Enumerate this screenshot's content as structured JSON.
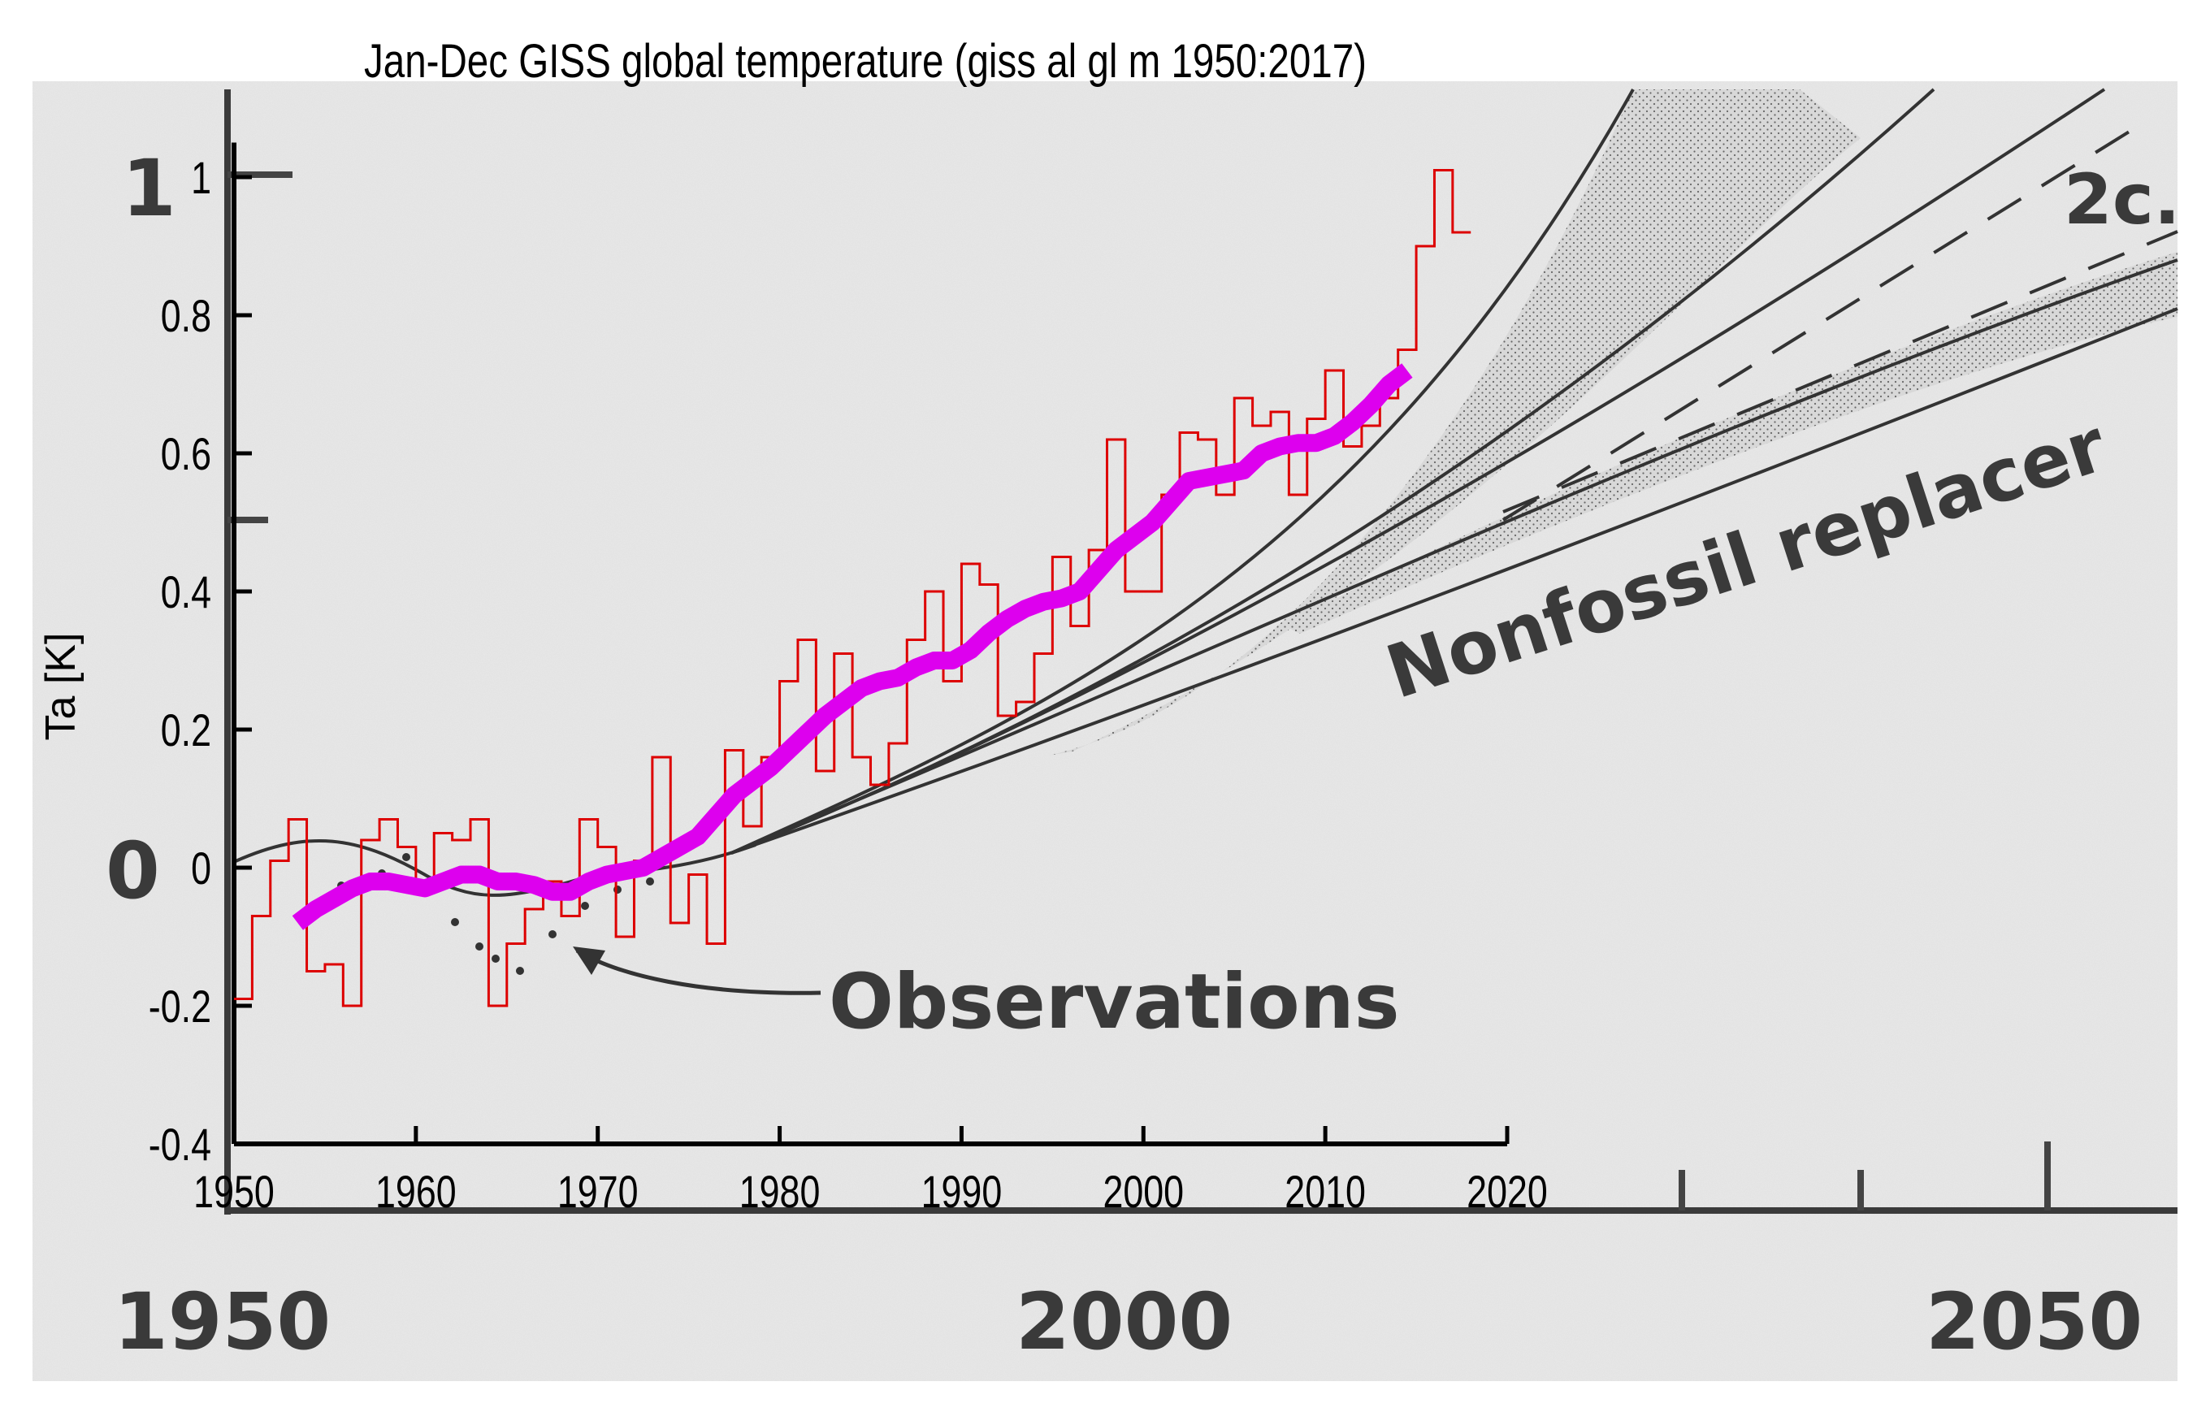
{
  "chart_data": {
    "type": "line",
    "title": "Jan-Dec  GISS global temperature (giss al gl m 1950:2017)",
    "ylabel": "Ta [K]",
    "xlabel": "",
    "xlim": [
      1950,
      2020
    ],
    "ylim": [
      -0.4,
      1.05
    ],
    "x_ticks": [
      1950,
      1960,
      1970,
      1980,
      1990,
      2000,
      2010,
      2020
    ],
    "y_ticks": [
      -0.4,
      -0.2,
      0,
      0.2,
      0.4,
      0.6,
      0.8,
      1
    ],
    "y_tick_labels": [
      "-0.4",
      "-0.2",
      "0",
      "0.2",
      "0.4",
      "0.6",
      "0.8",
      "1"
    ],
    "series": [
      {
        "color": "#dd0000",
        "style": "step",
        "x": [
          1950,
          1951,
          1952,
          1953,
          1954,
          1955,
          1956,
          1957,
          1958,
          1959,
          1960,
          1961,
          1962,
          1963,
          1964,
          1965,
          1966,
          1967,
          1968,
          1969,
          1970,
          1971,
          1972,
          1973,
          1974,
          1975,
          1976,
          1977,
          1978,
          1979,
          1980,
          1981,
          1982,
          1983,
          1984,
          1985,
          1986,
          1987,
          1988,
          1989,
          1990,
          1991,
          1992,
          1993,
          1994,
          1995,
          1996,
          1997,
          1998,
          1999,
          2000,
          2001,
          2002,
          2003,
          2004,
          2005,
          2006,
          2007,
          2008,
          2009,
          2010,
          2011,
          2012,
          2013,
          2014,
          2015,
          2016,
          2017
        ],
        "y": [
          -0.19,
          -0.07,
          0.01,
          0.07,
          -0.15,
          -0.14,
          -0.2,
          0.04,
          0.07,
          0.03,
          -0.02,
          0.05,
          0.04,
          0.07,
          -0.2,
          -0.11,
          -0.06,
          -0.02,
          -0.07,
          0.07,
          0.03,
          -0.1,
          0.01,
          0.16,
          -0.08,
          -0.01,
          -0.11,
          0.17,
          0.06,
          0.16,
          0.27,
          0.33,
          0.14,
          0.31,
          0.16,
          0.12,
          0.18,
          0.33,
          0.4,
          0.27,
          0.44,
          0.41,
          0.22,
          0.24,
          0.31,
          0.45,
          0.35,
          0.46,
          0.62,
          0.4,
          0.4,
          0.54,
          0.63,
          0.62,
          0.54,
          0.68,
          0.64,
          0.66,
          0.54,
          0.65,
          0.72,
          0.61,
          0.64,
          0.68,
          0.75,
          0.9,
          1.01,
          0.92
        ]
      },
      {
        "color": "#dd00ee",
        "style": "smoothed",
        "x": [
          1953,
          1954,
          1955,
          1956,
          1957,
          1958,
          1959,
          1960,
          1961,
          1962,
          1963,
          1964,
          1965,
          1966,
          1967,
          1968,
          1969,
          1970,
          1971,
          1972,
          1973,
          1974,
          1975,
          1976,
          1977,
          1978,
          1979,
          1980,
          1981,
          1982,
          1983,
          1984,
          1985,
          1986,
          1987,
          1988,
          1989,
          1990,
          1991,
          1992,
          1993,
          1994,
          1995,
          1996,
          1997,
          1998,
          1999,
          2000,
          2001,
          2002,
          2003,
          2004,
          2005,
          2006,
          2007,
          2008,
          2009,
          2010,
          2011,
          2012,
          2013,
          2014
        ],
        "y": [
          -0.08,
          -0.06,
          -0.045,
          -0.03,
          -0.02,
          -0.02,
          -0.025,
          -0.03,
          -0.02,
          -0.01,
          -0.01,
          -0.02,
          -0.02,
          -0.025,
          -0.035,
          -0.035,
          -0.02,
          -0.01,
          -0.005,
          0.0,
          0.015,
          0.03,
          0.045,
          0.075,
          0.105,
          0.125,
          0.145,
          0.17,
          0.195,
          0.22,
          0.24,
          0.26,
          0.27,
          0.275,
          0.29,
          0.3,
          0.3,
          0.315,
          0.34,
          0.36,
          0.375,
          0.385,
          0.39,
          0.4,
          0.43,
          0.46,
          0.48,
          0.5,
          0.53,
          0.56,
          0.565,
          0.57,
          0.575,
          0.6,
          0.61,
          0.615,
          0.615,
          0.625,
          0.645,
          0.67,
          0.7,
          0.72
        ]
      }
    ]
  },
  "background_figure": {
    "x_tick_labels": [
      "1950",
      "2000",
      "2050"
    ],
    "y_tick_labels": [
      "1",
      "0"
    ],
    "annotations": [
      "Observations",
      "Nonfossil replacer",
      "2c."
    ]
  }
}
